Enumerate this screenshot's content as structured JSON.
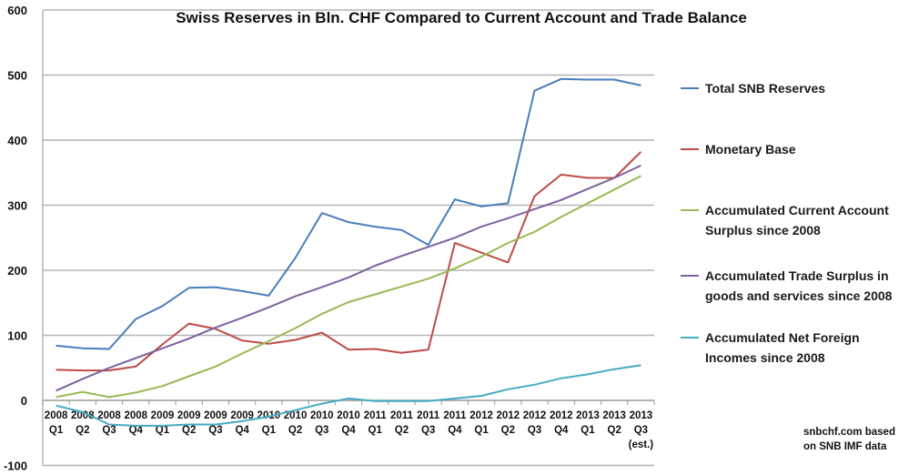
{
  "chart_data": {
    "type": "line",
    "title": "Swiss Reserves in Bln. CHF Compared to Current Account and Trade Balance",
    "xlabel": "",
    "ylabel": "",
    "ylim": [
      -100,
      600
    ],
    "yticks": [
      -100,
      0,
      100,
      200,
      300,
      400,
      500,
      600
    ],
    "grid": true,
    "legend_position": "right",
    "categories": [
      {
        "year": "2008",
        "q": "Q1"
      },
      {
        "year": "2008",
        "q": "Q2"
      },
      {
        "year": "2008",
        "q": "Q3"
      },
      {
        "year": "2008",
        "q": "Q4"
      },
      {
        "year": "2009",
        "q": "Q1"
      },
      {
        "year": "2009",
        "q": "Q2"
      },
      {
        "year": "2009",
        "q": "Q3"
      },
      {
        "year": "2009",
        "q": "Q4"
      },
      {
        "year": "2010",
        "q": "Q1"
      },
      {
        "year": "2010",
        "q": "Q2"
      },
      {
        "year": "2010",
        "q": "Q3"
      },
      {
        "year": "2010",
        "q": "Q4"
      },
      {
        "year": "2011",
        "q": "Q1"
      },
      {
        "year": "2011",
        "q": "Q2"
      },
      {
        "year": "2011",
        "q": "Q3"
      },
      {
        "year": "2011",
        "q": "Q4"
      },
      {
        "year": "2012",
        "q": "Q1"
      },
      {
        "year": "2012",
        "q": "Q2"
      },
      {
        "year": "2012",
        "q": "Q3"
      },
      {
        "year": "2012",
        "q": "Q4"
      },
      {
        "year": "2013",
        "q": "Q1"
      },
      {
        "year": "2013",
        "q": "Q2"
      },
      {
        "year": "2013",
        "q": "Q3",
        "note": "(est.)"
      }
    ],
    "series": [
      {
        "name": [
          "Total SNB Reserves"
        ],
        "color": "#4a7ebb",
        "values": [
          84,
          80,
          79,
          125,
          145,
          173,
          174,
          168,
          161,
          219,
          288,
          274,
          267,
          262,
          239,
          309,
          298,
          303,
          476,
          494,
          493,
          493,
          484
        ]
      },
      {
        "name": [
          "Monetary Base"
        ],
        "color": "#be4b48",
        "values": [
          47,
          46,
          46,
          52,
          86,
          118,
          110,
          92,
          87,
          93,
          104,
          78,
          79,
          73,
          78,
          242,
          227,
          212,
          314,
          347,
          342,
          342,
          382
        ]
      },
      {
        "name": [
          "Accumulated Current Account",
          "Surplus since 2008"
        ],
        "color": "#98b954",
        "values": [
          5,
          13,
          5,
          12,
          22,
          37,
          52,
          72,
          91,
          111,
          133,
          151,
          163,
          175,
          187,
          203,
          221,
          242,
          259,
          282,
          303,
          324,
          345
        ]
      },
      {
        "name": [
          "Accumulated Trade Surplus in",
          "goods and services since 2008"
        ],
        "color": "#7d60a0",
        "values": [
          15,
          33,
          50,
          65,
          80,
          95,
          112,
          127,
          143,
          160,
          174,
          189,
          207,
          222,
          236,
          250,
          267,
          280,
          294,
          308,
          325,
          342,
          361
        ]
      },
      {
        "name": [
          "Accumulated Net Foreign",
          "Incomes since 2008"
        ],
        "color": "#46aac5",
        "values": [
          -8,
          -18,
          -37,
          -39,
          -39,
          -37,
          -37,
          -32,
          -25,
          -15,
          -5,
          3,
          -1,
          -1,
          -1,
          3,
          7,
          17,
          24,
          34,
          40,
          48,
          54
        ]
      }
    ],
    "source_note": [
      "snbchf.com based",
      "on SNB IMF data"
    ]
  }
}
